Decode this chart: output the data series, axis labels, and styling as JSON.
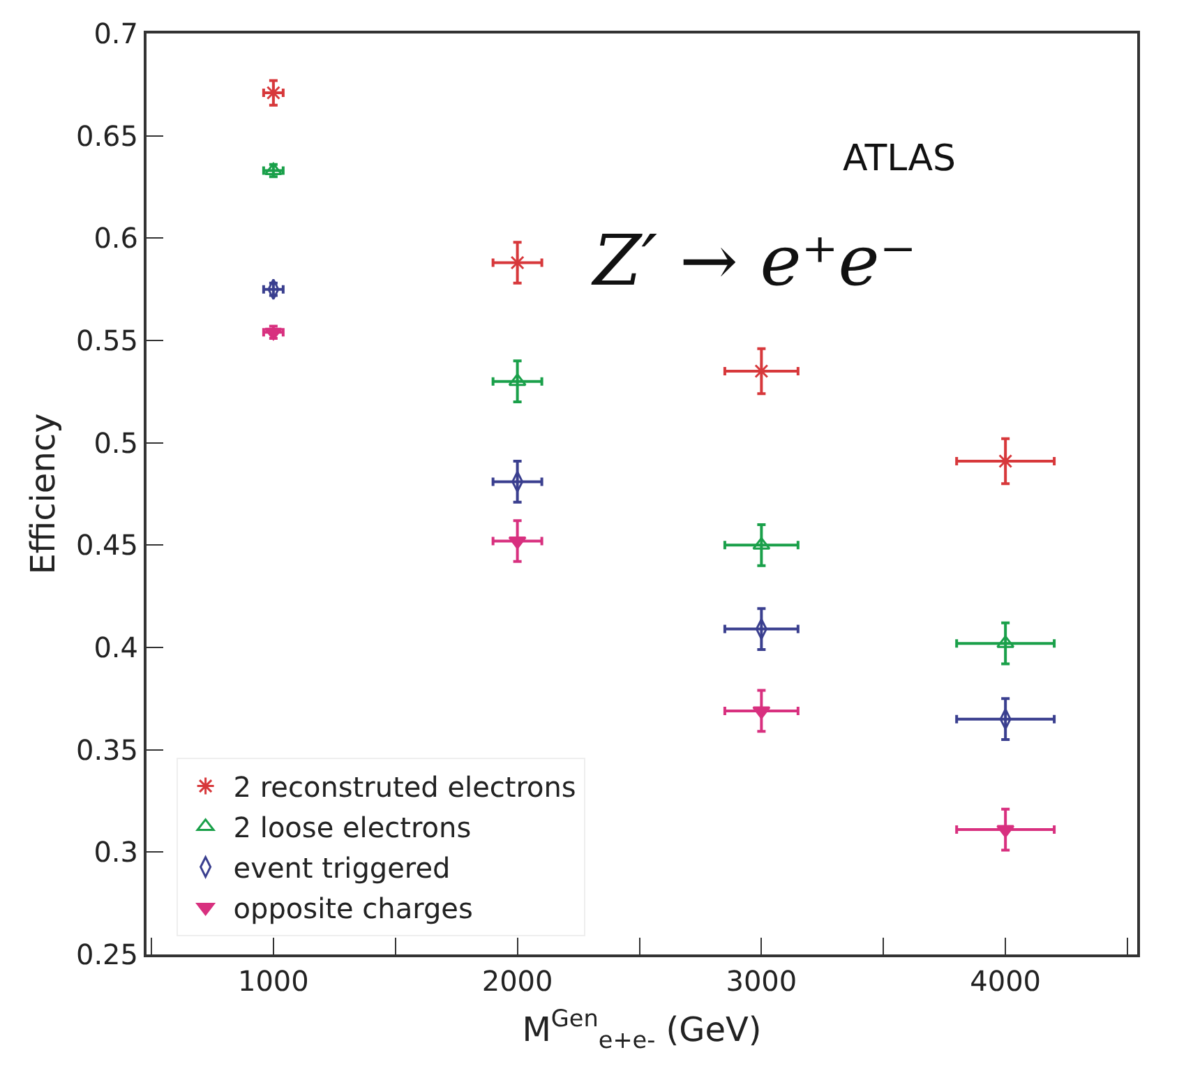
{
  "chart_data": {
    "type": "scatter",
    "xlabel": "M$^{Gen}$$_{e+e-}$ (GeV)",
    "ylabel": "Efficiency",
    "annotations": [
      "ATLAS",
      "Z′ → e⁺e⁻"
    ],
    "x": [
      1000,
      2000,
      3000,
      4000
    ],
    "xlim": [
      480,
      4540
    ],
    "xticks": [
      {
        "value": 500,
        "label": null
      },
      1000,
      {
        "value": 1500,
        "label": null
      },
      2000,
      {
        "value": 2500,
        "label": null
      },
      3000,
      {
        "value": 3500,
        "label": null
      },
      4000,
      {
        "value": 4500,
        "label": null
      }
    ],
    "ylim": [
      0.25,
      0.7
    ],
    "yticks": [
      0.25,
      0.3,
      0.35,
      0.4,
      0.45,
      0.5,
      0.55,
      0.6,
      0.65,
      0.7
    ],
    "grid": false,
    "legend": "bottom left",
    "series": [
      {
        "name": "2 reconstruted electrons",
        "color": "#d7383b",
        "marker": "cross",
        "values": [
          0.671,
          0.588,
          0.535,
          0.491
        ],
        "errors": [
          0.006,
          0.01,
          0.011,
          0.011
        ],
        "xerrors": [
          40,
          100,
          150,
          200
        ]
      },
      {
        "name": "2 loose electrons",
        "color": "#1aa04a",
        "marker": "triangle",
        "values": [
          0.633,
          0.53,
          0.45,
          0.402
        ],
        "errors": [
          0.003,
          0.01,
          0.01,
          0.01
        ],
        "xerrors": [
          40,
          100,
          150,
          200
        ]
      },
      {
        "name": "event triggered",
        "color": "#3a3f8f",
        "marker": "diamond",
        "values": [
          0.575,
          0.481,
          0.409,
          0.365
        ],
        "errors": [
          0.003,
          0.01,
          0.01,
          0.01
        ],
        "xerrors": [
          40,
          100,
          150,
          200
        ]
      },
      {
        "name": "opposite charges",
        "color": "#d8307f",
        "marker": "triangle",
        "values": [
          0.554,
          0.452,
          0.369,
          0.311
        ],
        "errors": [
          0.003,
          0.01,
          0.01,
          0.01
        ],
        "xerrors": [
          40,
          100,
          150,
          200
        ]
      }
    ]
  }
}
